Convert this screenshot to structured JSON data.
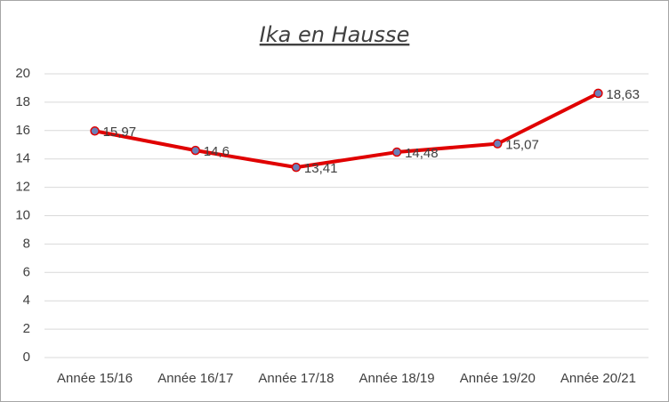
{
  "chart_data": {
    "type": "line",
    "title": "Ika en Hausse",
    "categories": [
      "Année 15/16",
      "Année 16/17",
      "Année 17/18",
      "Année 18/19",
      "Année 19/20",
      "Année 20/21"
    ],
    "series": [
      {
        "color": "#e00000",
        "marker_color": "#6b7fb8",
        "values": [
          15.97,
          14.6,
          13.41,
          14.48,
          15.07,
          18.63
        ],
        "value_labels": [
          "15,97",
          "14,6",
          "13,41",
          "14,48",
          "15,07",
          "18,63"
        ]
      }
    ],
    "ylim": [
      0,
      20
    ],
    "yticks": [
      0,
      2,
      4,
      6,
      8,
      10,
      12,
      14,
      16,
      18,
      20
    ],
    "grid": true
  }
}
